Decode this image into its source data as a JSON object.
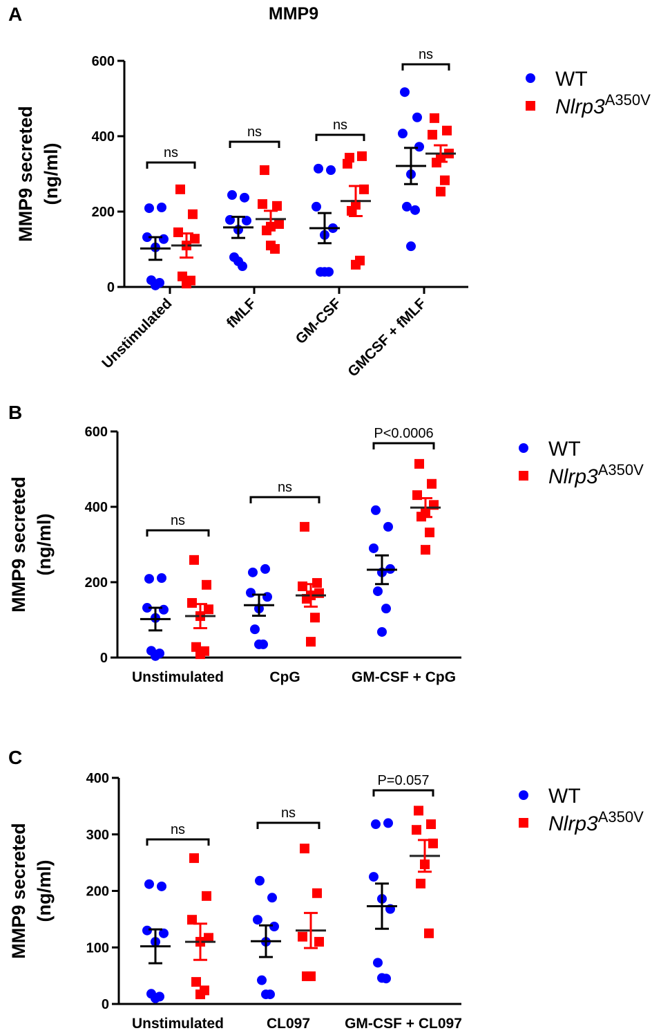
{
  "title": "MMP9",
  "colors": {
    "wt": "#0000ff",
    "mut": "#ff0000",
    "axis": "#000000"
  },
  "legend": {
    "wt": "WT",
    "mut_base": "Nlrp3",
    "mut_sup": "A350V"
  },
  "chart_data": [
    {
      "panel": "A",
      "type": "scatter",
      "ylabel": "MMP9 secreted",
      "ylabel2": "(ng/ml)",
      "ylim": [
        0,
        600
      ],
      "yticks": [
        0,
        200,
        400,
        600
      ],
      "xlabel_rotated": true,
      "categories": [
        "Unstimulated",
        "fMLF",
        "GM-CSF",
        "GMCSF + fMLF"
      ],
      "annotations": [
        "ns",
        "ns",
        "ns",
        "ns"
      ],
      "series": [
        {
          "name": "WT",
          "groups": [
            {
              "values": [
                209,
                211,
                132,
                127,
                105,
                18,
                11,
                4
              ],
              "mean": 102,
              "sem": 30
            },
            {
              "values": [
                244,
                237,
                178,
                176,
                152,
                79,
                55,
                68
              ],
              "mean": 158,
              "sem": 28
            },
            {
              "values": [
                314,
                310,
                213,
                156,
                138,
                40,
                40,
                40
              ],
              "mean": 156,
              "sem": 40
            },
            {
              "values": [
                517,
                450,
                407,
                372,
                299,
                213,
                204,
                108
              ],
              "mean": 321,
              "sem": 48
            }
          ]
        },
        {
          "name": "Nlrp3 A350V",
          "groups": [
            {
              "values": [
                259,
                193,
                145,
                128,
                110,
                28,
                17,
                9
              ],
              "mean": 110,
              "sem": 32
            },
            {
              "values": [
                310,
                215,
                220,
                167,
                160,
                150,
                101,
                110
              ],
              "mean": 180,
              "sem": 22
            },
            {
              "values": [
                343,
                347,
                327,
                259,
                218,
                202,
                70,
                59
              ],
              "mean": 228,
              "sem": 40
            },
            {
              "values": [
                448,
                415,
                404,
                354,
                343,
                330,
                283,
                253
              ],
              "mean": 354,
              "sem": 22
            }
          ]
        }
      ]
    },
    {
      "panel": "B",
      "type": "scatter",
      "ylabel": "MMP9 secreted",
      "ylabel2": "(ng/ml)",
      "ylim": [
        0,
        600
      ],
      "yticks": [
        0,
        200,
        400,
        600
      ],
      "xlabel_rotated": false,
      "categories": [
        "Unstimulated",
        "CpG",
        "GM-CSF + CpG"
      ],
      "annotations": [
        "ns",
        "ns",
        "P<0.0006"
      ],
      "series": [
        {
          "name": "WT",
          "groups": [
            {
              "values": [
                209,
                211,
                132,
                127,
                105,
                18,
                11,
                4
              ],
              "mean": 102,
              "sem": 30
            },
            {
              "values": [
                226,
                235,
                172,
                161,
                130,
                75,
                35,
                35
              ],
              "mean": 139,
              "sem": 28
            },
            {
              "values": [
                391,
                347,
                290,
                235,
                226,
                176,
                130,
                68
              ],
              "mean": 233,
              "sem": 38
            }
          ]
        },
        {
          "name": "Nlrp3 A350V",
          "groups": [
            {
              "values": [
                259,
                193,
                145,
                128,
                110,
                28,
                17,
                9
              ],
              "mean": 110,
              "sem": 32
            },
            {
              "values": [
                347,
                198,
                189,
                171,
                165,
                156,
                106,
                42
              ],
              "mean": 165,
              "sem": 30
            },
            {
              "values": [
                514,
                461,
                431,
                405,
                385,
                374,
                332,
                286
              ],
              "mean": 398,
              "sem": 25
            }
          ]
        }
      ]
    },
    {
      "panel": "C",
      "type": "scatter",
      "ylabel": "MMP9 secreted",
      "ylabel2": "(ng/ml)",
      "ylim": [
        0,
        400
      ],
      "yticks": [
        0,
        100,
        200,
        300,
        400
      ],
      "xlabel_rotated": false,
      "categories": [
        "Unstimulated",
        "CL097",
        "GM-CSF + CL097"
      ],
      "annotations": [
        "ns",
        "ns",
        "P=0.057"
      ],
      "series": [
        {
          "name": "WT",
          "groups": [
            {
              "values": [
                212,
                208,
                130,
                125,
                110,
                18,
                13,
                10
              ],
              "mean": 102,
              "sem": 30
            },
            {
              "values": [
                218,
                188,
                149,
                137,
                110,
                42,
                17,
                17
              ],
              "mean": 111,
              "sem": 28
            },
            {
              "values": [
                318,
                320,
                225,
                168,
                186,
                73,
                45,
                46
              ],
              "mean": 173,
              "sem": 40
            }
          ]
        },
        {
          "name": "Nlrp3 A350V",
          "groups": [
            {
              "values": [
                258,
                191,
                149,
                117,
                110,
                39,
                24,
                17
              ],
              "mean": 110,
              "sem": 32
            },
            {
              "values": [
                275,
                196,
                119,
                110,
                49,
                49
              ],
              "mean": 130,
              "sem": 31
            },
            {
              "values": [
                342,
                318,
                308,
                284,
                247,
                213,
                125
              ],
              "mean": 262,
              "sem": 28
            }
          ]
        }
      ]
    }
  ]
}
